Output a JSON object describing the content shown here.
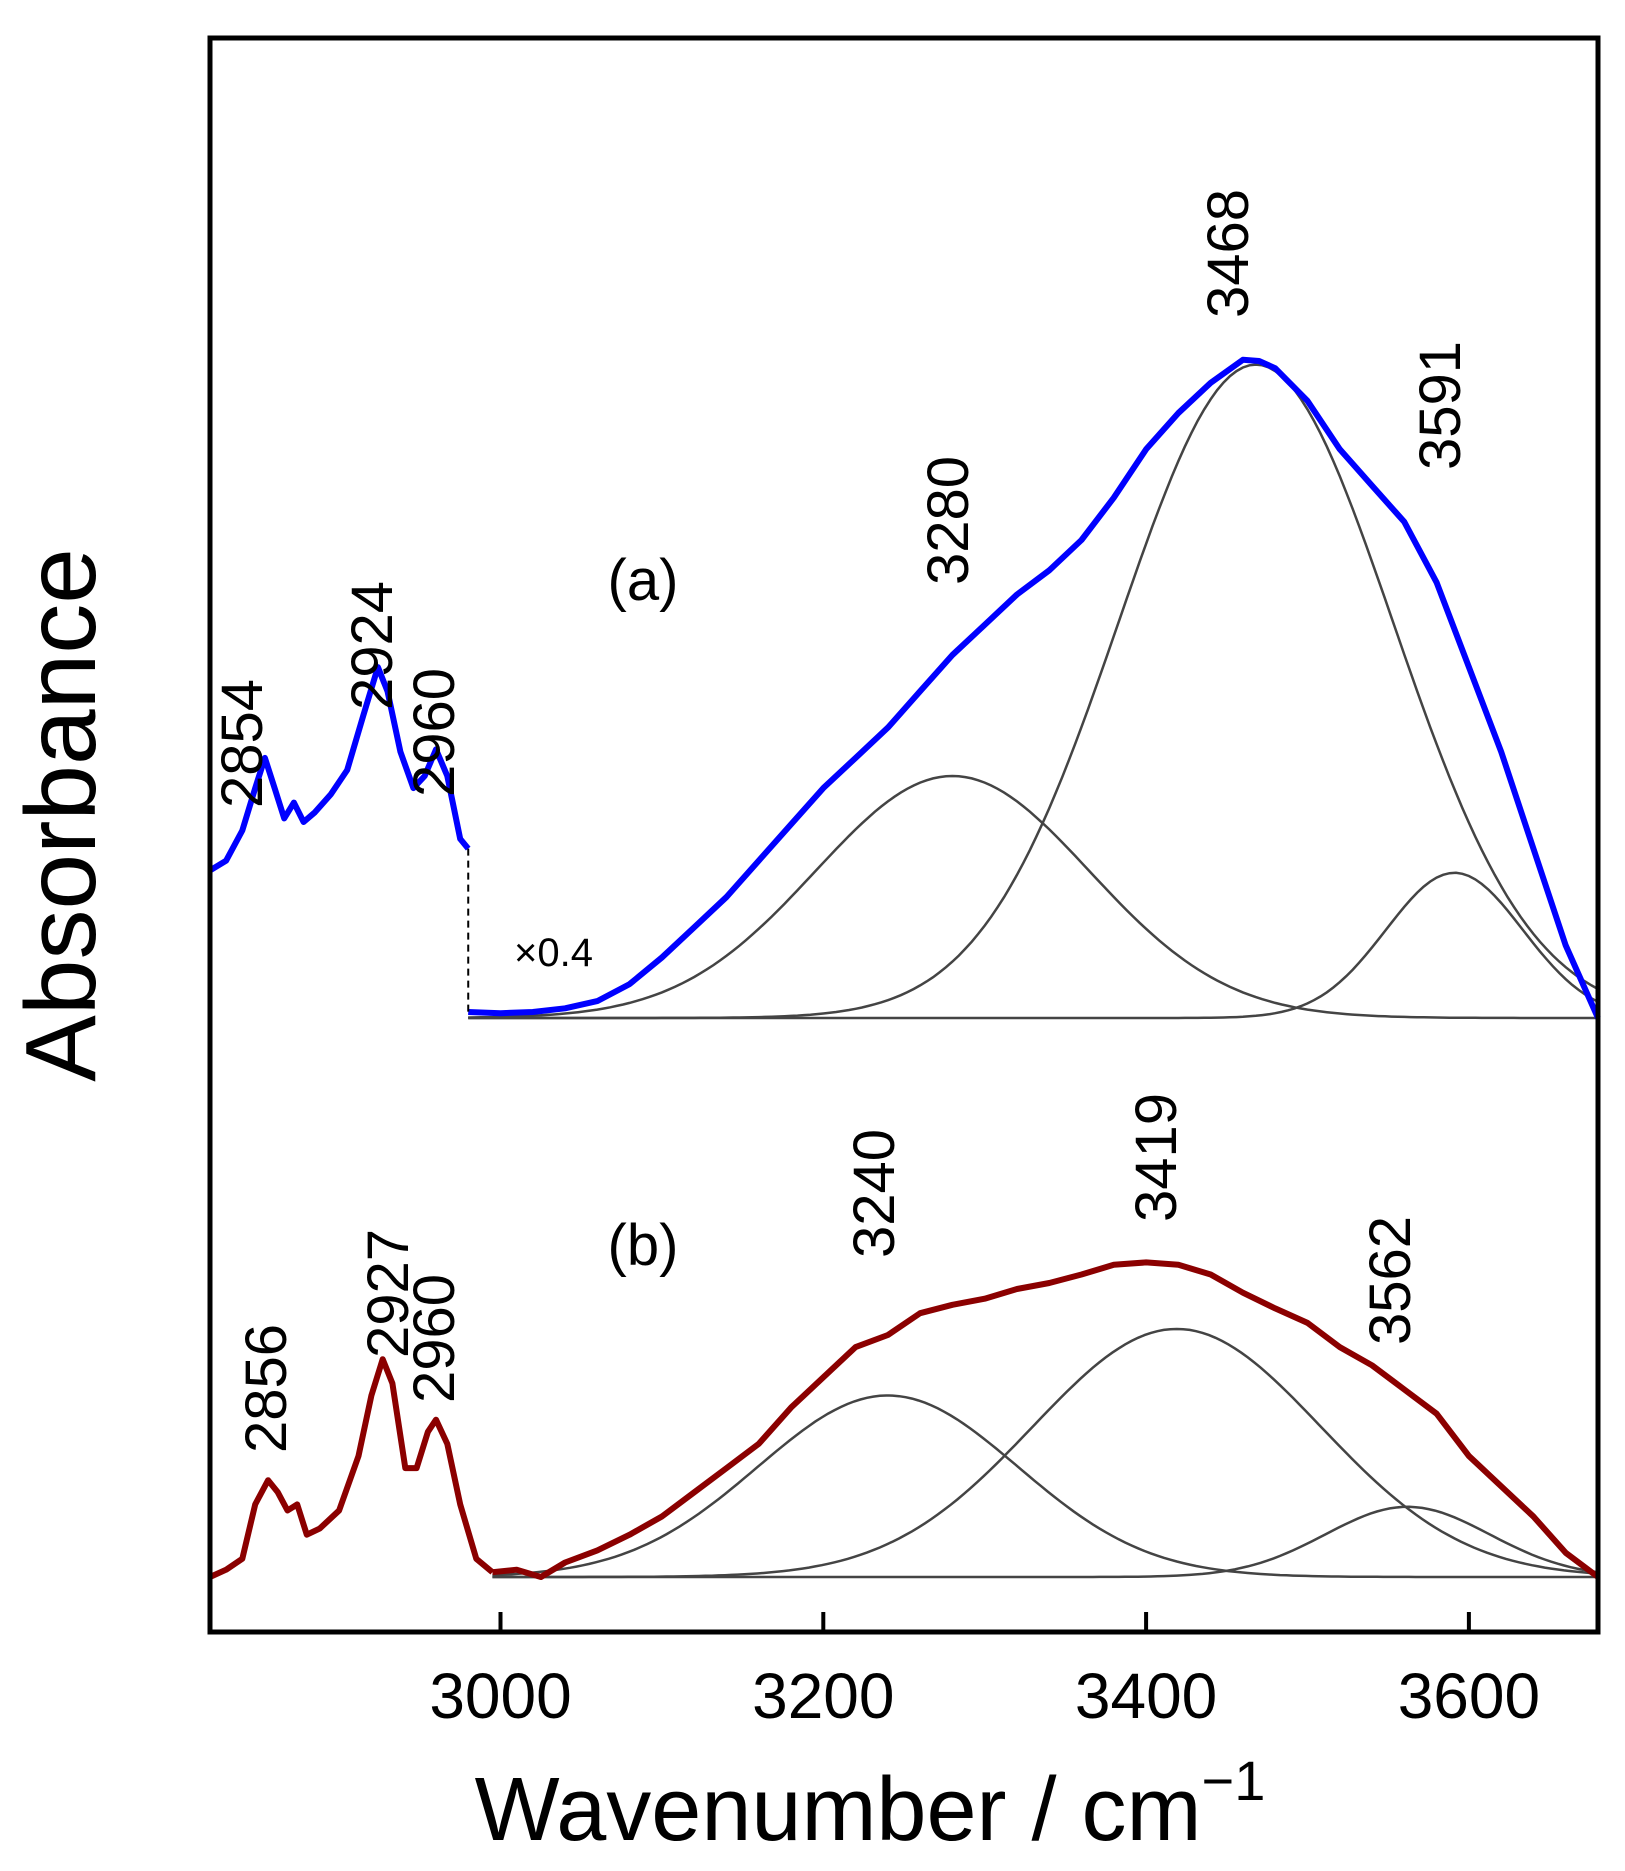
{
  "chart_data": {
    "type": "line",
    "xlabel": "Wavenumber / cm",
    "xlabel_superscript": "−1",
    "ylabel": "Absorbance",
    "xlim": [
      2820,
      3680
    ],
    "xticks": [
      3000,
      3200,
      3400,
      3600
    ],
    "xtick_labels": [
      "3000",
      "3200",
      "3400",
      "3600"
    ],
    "panels": [
      {
        "label": "(a)",
        "color": "#0000ff",
        "scale_note": "×0.4",
        "ch_region": [
          [
            2820,
            0.122
          ],
          [
            2830,
            0.13
          ],
          [
            2840,
            0.155
          ],
          [
            2848,
            0.19
          ],
          [
            2854,
            0.215
          ],
          [
            2860,
            0.19
          ],
          [
            2866,
            0.165
          ],
          [
            2872,
            0.178
          ],
          [
            2878,
            0.162
          ],
          [
            2885,
            0.17
          ],
          [
            2895,
            0.185
          ],
          [
            2905,
            0.205
          ],
          [
            2915,
            0.25
          ],
          [
            2924,
            0.29
          ],
          [
            2930,
            0.27
          ],
          [
            2938,
            0.22
          ],
          [
            2946,
            0.19
          ],
          [
            2953,
            0.2
          ],
          [
            2960,
            0.222
          ],
          [
            2967,
            0.2
          ],
          [
            2975,
            0.148
          ],
          [
            2980,
            0.14
          ]
        ],
        "oh_region": [
          [
            2980,
            0.005
          ],
          [
            3000,
            0.004
          ],
          [
            3020,
            0.005
          ],
          [
            3040,
            0.008
          ],
          [
            3060,
            0.014
          ],
          [
            3080,
            0.028
          ],
          [
            3100,
            0.05
          ],
          [
            3120,
            0.075
          ],
          [
            3140,
            0.1
          ],
          [
            3160,
            0.13
          ],
          [
            3180,
            0.16
          ],
          [
            3200,
            0.19
          ],
          [
            3220,
            0.215
          ],
          [
            3240,
            0.24
          ],
          [
            3260,
            0.27
          ],
          [
            3280,
            0.3
          ],
          [
            3300,
            0.325
          ],
          [
            3320,
            0.35
          ],
          [
            3340,
            0.37
          ],
          [
            3360,
            0.395
          ],
          [
            3380,
            0.43
          ],
          [
            3400,
            0.47
          ],
          [
            3420,
            0.5
          ],
          [
            3440,
            0.525
          ],
          [
            3460,
            0.544
          ],
          [
            3470,
            0.543
          ],
          [
            3480,
            0.537
          ],
          [
            3500,
            0.51
          ],
          [
            3520,
            0.47
          ],
          [
            3540,
            0.44
          ],
          [
            3560,
            0.41
          ],
          [
            3580,
            0.36
          ],
          [
            3600,
            0.29
          ],
          [
            3620,
            0.22
          ],
          [
            3640,
            0.14
          ],
          [
            3660,
            0.06
          ],
          [
            3680,
            0.0
          ]
        ],
        "fit_components": [
          {
            "center": 3280,
            "height": 0.2,
            "fwhm": 200
          },
          {
            "center": 3468,
            "height": 0.54,
            "fwhm": 200
          },
          {
            "center": 3591,
            "height": 0.12,
            "fwhm": 100
          }
        ],
        "peak_labels": [
          "2854",
          "2924",
          "2960",
          "3280",
          "3468",
          "3591"
        ]
      },
      {
        "label": "(b)",
        "color": "#8b0000",
        "ch_region": [
          [
            2820,
            0.0
          ],
          [
            2830,
            0.006
          ],
          [
            2840,
            0.015
          ],
          [
            2848,
            0.06
          ],
          [
            2856,
            0.08
          ],
          [
            2862,
            0.07
          ],
          [
            2868,
            0.055
          ],
          [
            2874,
            0.06
          ],
          [
            2880,
            0.035
          ],
          [
            2888,
            0.04
          ],
          [
            2900,
            0.055
          ],
          [
            2912,
            0.1
          ],
          [
            2920,
            0.15
          ],
          [
            2927,
            0.18
          ],
          [
            2933,
            0.16
          ],
          [
            2941,
            0.09
          ],
          [
            2948,
            0.09
          ],
          [
            2955,
            0.12
          ],
          [
            2960,
            0.13
          ],
          [
            2967,
            0.11
          ],
          [
            2975,
            0.06
          ],
          [
            2985,
            0.015
          ],
          [
            2995,
            0.004
          ]
        ],
        "oh_region": [
          [
            2995,
            0.004
          ],
          [
            3010,
            0.006
          ],
          [
            3025,
            0.0
          ],
          [
            3040,
            0.012
          ],
          [
            3060,
            0.022
          ],
          [
            3080,
            0.035
          ],
          [
            3100,
            0.05
          ],
          [
            3120,
            0.07
          ],
          [
            3140,
            0.09
          ],
          [
            3160,
            0.11
          ],
          [
            3180,
            0.14
          ],
          [
            3200,
            0.165
          ],
          [
            3220,
            0.19
          ],
          [
            3240,
            0.2
          ],
          [
            3260,
            0.218
          ],
          [
            3280,
            0.225
          ],
          [
            3300,
            0.23
          ],
          [
            3320,
            0.238
          ],
          [
            3340,
            0.243
          ],
          [
            3360,
            0.25
          ],
          [
            3380,
            0.258
          ],
          [
            3400,
            0.26
          ],
          [
            3420,
            0.258
          ],
          [
            3440,
            0.25
          ],
          [
            3460,
            0.235
          ],
          [
            3480,
            0.222
          ],
          [
            3500,
            0.21
          ],
          [
            3520,
            0.19
          ],
          [
            3540,
            0.175
          ],
          [
            3560,
            0.155
          ],
          [
            3580,
            0.135
          ],
          [
            3600,
            0.1
          ],
          [
            3620,
            0.075
          ],
          [
            3640,
            0.05
          ],
          [
            3660,
            0.02
          ],
          [
            3680,
            0.0
          ]
        ],
        "fit_components": [
          {
            "center": 3240,
            "height": 0.15,
            "fwhm": 190
          },
          {
            "center": 3419,
            "height": 0.205,
            "fwhm": 210
          },
          {
            "center": 3562,
            "height": 0.058,
            "fwhm": 120
          }
        ],
        "peak_labels": [
          "2856",
          "2927",
          "2960",
          "3240",
          "3419",
          "3562"
        ]
      }
    ]
  }
}
